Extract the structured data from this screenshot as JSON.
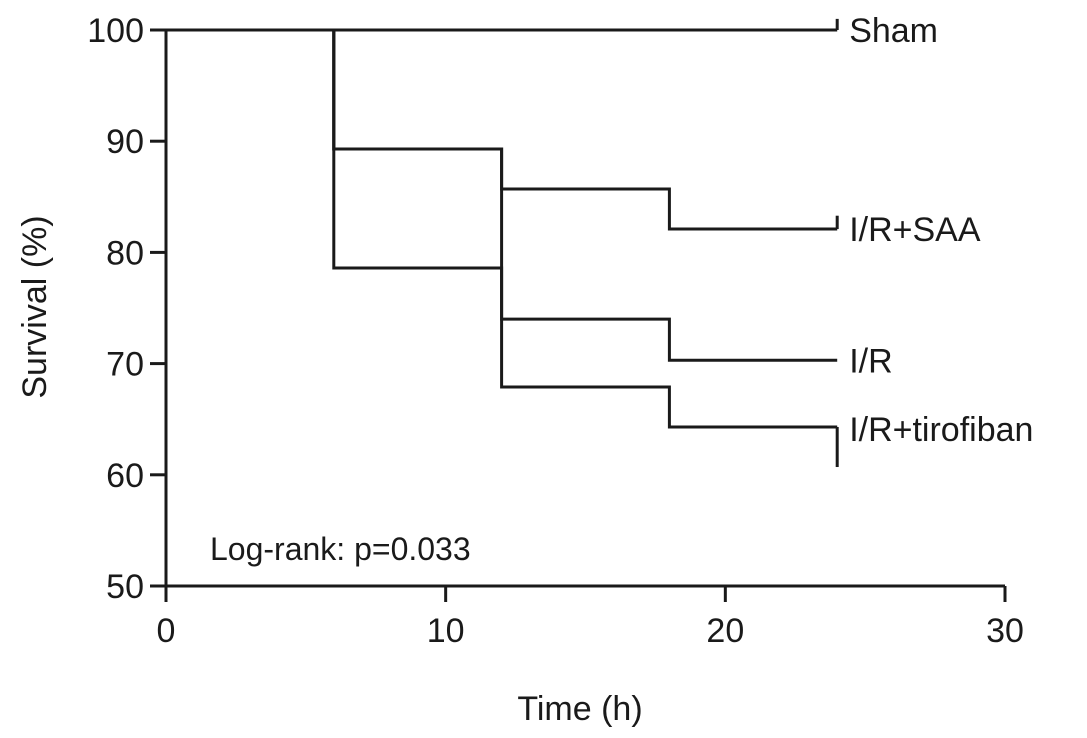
{
  "chart_data": {
    "type": "line",
    "subtype": "kaplan-meier step",
    "title": "",
    "xlabel": "Time (h)",
    "ylabel": "Survival (%)",
    "xlim": [
      0,
      30
    ],
    "ylim": [
      50,
      100
    ],
    "xticks": [
      0,
      10,
      20,
      30
    ],
    "yticks": [
      50,
      60,
      70,
      80,
      90,
      100
    ],
    "grid": false,
    "series": [
      {
        "name": "Sham",
        "x": [
          0,
          24
        ],
        "y": [
          100,
          100
        ],
        "end_x": 24,
        "censor_to": 101
      },
      {
        "name": "I/R+SAA",
        "x": [
          6,
          6,
          12,
          12,
          18,
          18,
          24
        ],
        "y": [
          100,
          89.3,
          89.3,
          85.7,
          85.7,
          82.1,
          82.1
        ],
        "end_x": 24,
        "censor_to": 83.3
      },
      {
        "name": "I/R",
        "x": [
          6,
          6,
          12,
          12,
          18,
          18,
          24
        ],
        "y": [
          100,
          78.6,
          78.6,
          74,
          74,
          70.3,
          70.3
        ],
        "end_x": 24,
        "censor_to": 70.3
      },
      {
        "name": "I/R+tirofiban",
        "x": [
          6,
          6,
          12,
          12,
          18,
          18,
          24
        ],
        "y": [
          100,
          89.3,
          89.3,
          67.9,
          67.9,
          64.3,
          64.3
        ],
        "end_x": 24,
        "censor_to": 60.7
      }
    ],
    "annotation": "Log-rank: p=0.033"
  }
}
